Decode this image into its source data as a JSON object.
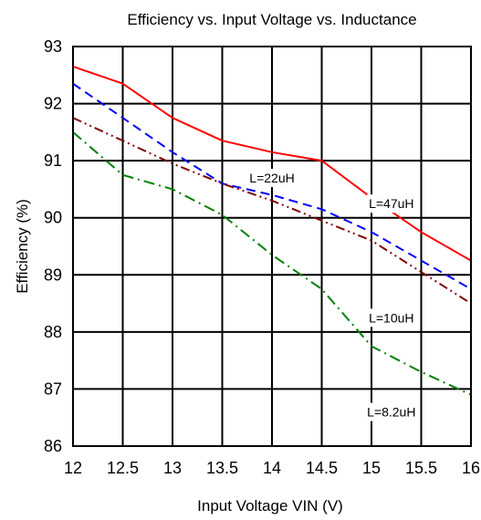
{
  "chart_data": {
    "type": "line",
    "title": "Efficiency vs. Input Voltage vs. Inductance",
    "xlabel": "Input Voltage VIN (V)",
    "ylabel": "Efficiency  (%)",
    "xlim": [
      12,
      16
    ],
    "ylim": [
      86,
      93
    ],
    "xticks": [
      12,
      12.5,
      13,
      13.5,
      14,
      14.5,
      15,
      15.5,
      16
    ],
    "xtick_labels": [
      "12",
      "12.5",
      "13",
      "13.5",
      "14",
      "14.5",
      "15",
      "15.5",
      "16"
    ],
    "yticks": [
      86,
      87,
      88,
      89,
      90,
      91,
      92,
      93
    ],
    "ytick_labels": [
      "86",
      "87",
      "88",
      "89",
      "90",
      "91",
      "92",
      "93"
    ],
    "grid": true,
    "legend": "inline labels",
    "series": [
      {
        "name": "L=47uH",
        "color": "#ff0000",
        "dash": "solid",
        "x": [
          12,
          12.5,
          13,
          13.5,
          14,
          14.5,
          15,
          15.5,
          16
        ],
        "y": [
          92.65,
          92.35,
          91.75,
          91.35,
          91.15,
          91.0,
          90.35,
          89.75,
          89.25
        ]
      },
      {
        "name": "L=22uH",
        "color": "#0000ff",
        "dash": "dashed",
        "x": [
          12,
          12.5,
          13,
          13.5,
          14,
          14.5,
          15,
          15.5,
          16
        ],
        "y": [
          92.35,
          91.75,
          91.15,
          90.6,
          90.4,
          90.15,
          89.75,
          89.25,
          88.75
        ]
      },
      {
        "name": "L=10uH",
        "color": "#800000",
        "dash": "dash-dot-dot",
        "x": [
          12,
          12.5,
          13,
          13.5,
          14,
          14.5,
          15,
          15.5,
          16
        ],
        "y": [
          91.75,
          91.35,
          90.95,
          90.6,
          90.3,
          89.95,
          89.6,
          89.05,
          88.5
        ]
      },
      {
        "name": "L=8.2uH",
        "color": "#008000",
        "dash": "dash-dot",
        "x": [
          12,
          12.5,
          13,
          13.5,
          14,
          14.5,
          15,
          15.5,
          16
        ],
        "y": [
          91.5,
          90.75,
          90.5,
          90.05,
          89.35,
          88.75,
          87.75,
          87.3,
          86.9
        ]
      }
    ],
    "annotations": [
      {
        "text": "L=22uH",
        "x": 14.0,
        "y": 90.65
      },
      {
        "text": "L=47uH",
        "x": 15.2,
        "y": 90.2
      },
      {
        "text": "L=10uH",
        "x": 15.2,
        "y": 88.2
      },
      {
        "text": "L=8.2uH",
        "x": 15.2,
        "y": 86.55
      }
    ]
  }
}
